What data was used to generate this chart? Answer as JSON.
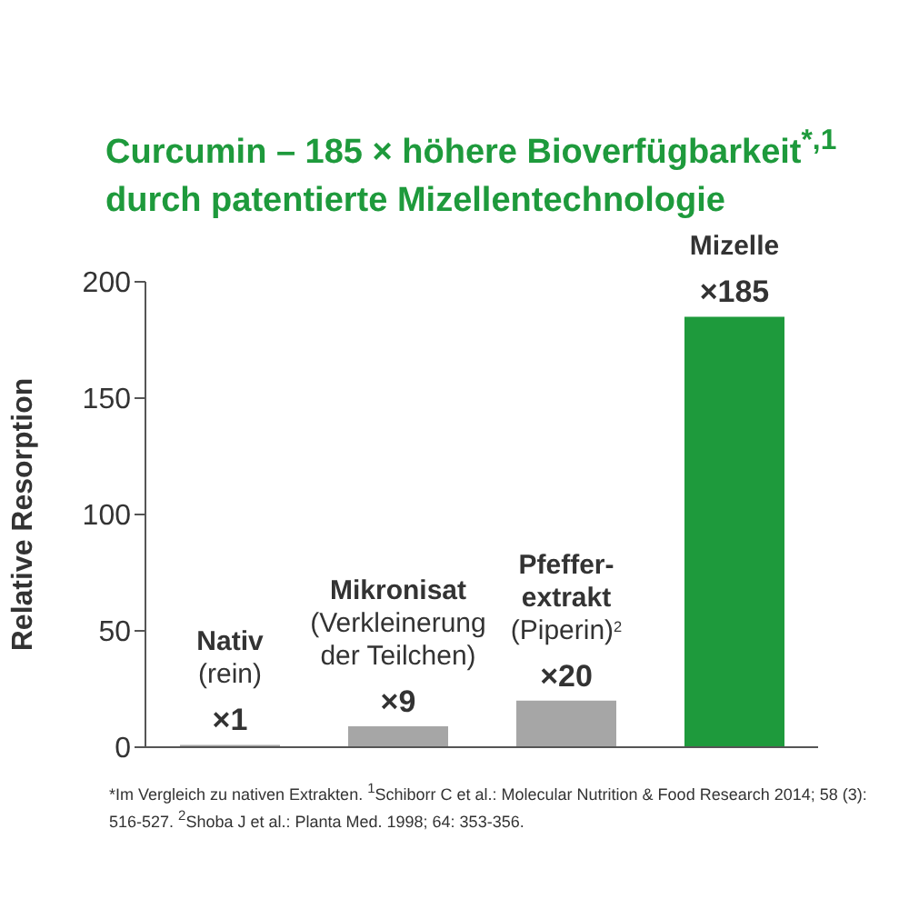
{
  "chart_data": {
    "type": "bar",
    "title": "Curcumin – 185 × höhere Bioverfügbarkeit$^{*,1}$ durch patentierte Mizellentechnologie",
    "ylabel": "Relative Resorption",
    "categories": [
      null,
      null,
      null,
      null
    ],
    "values": [
      1,
      9,
      20,
      185
    ],
    "value_labels": [
      "×1",
      "×9",
      "×20",
      "×185"
    ],
    "colors": [
      "#a6a6a6",
      "#a6a6a6",
      "#a6a6a6",
      "#1e9a3c"
    ],
    "ylim": [
      0,
      200
    ],
    "yticks": [
      0,
      50,
      100,
      150,
      200
    ],
    "annotations": [
      {
        "text": "Nativ\n(rein)",
        "y": 1
      },
      {
        "text": "Mikronisat\n(Verkleinerung\nder Teilchen)",
        "y": 9
      },
      {
        "text": "Pfeffer-\nextrakt\n(Piperin)$^{2}$",
        "y": 20
      },
      {
        "text": "Mizelle",
        "y": 185
      },
      "*Im Vergleich zu nativen Extrakten. $^{1}$Schiborr C et al.: Molecular Nutrition & Food Research 2014; 58 (3): 516-527. $^{2}$Shoba J et al.: Planta Med. 1998; 64: 353-356."
    ]
  }
}
